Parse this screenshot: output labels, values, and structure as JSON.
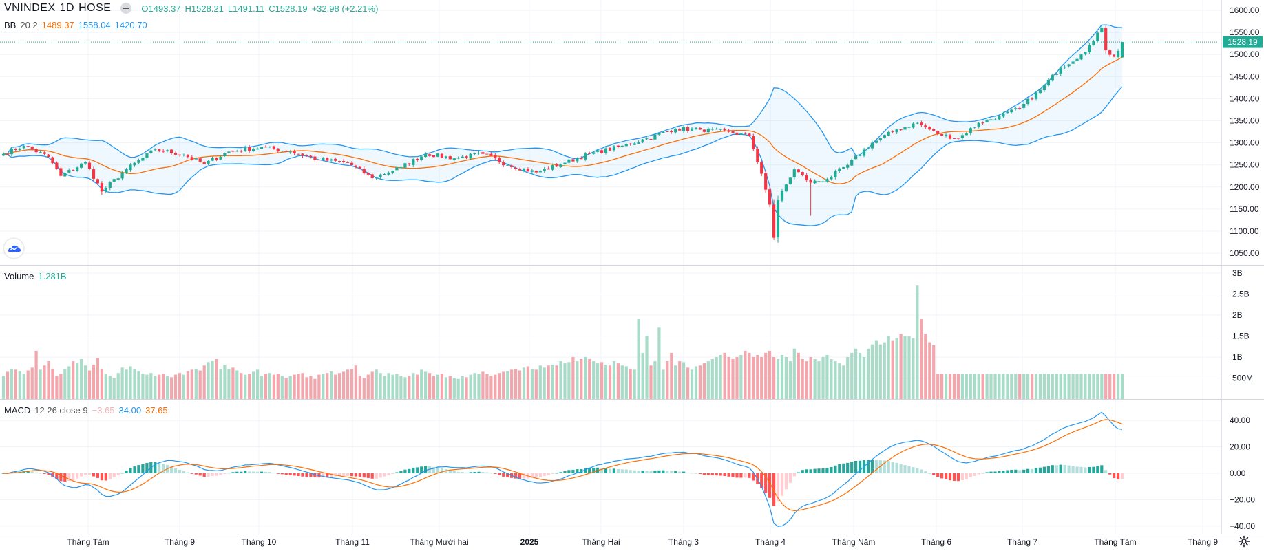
{
  "header": {
    "symbol": "VNINDEX",
    "interval": "1D",
    "exchange": "HOSE",
    "open": "O1493.37",
    "high": "H1528.21",
    "low": "L1491.11",
    "close": "C1528.19",
    "change": "+32.98 (+2.21%)"
  },
  "indicators": {
    "bb": {
      "label": "BB",
      "params": "20 2",
      "middle": "1489.37",
      "upper": "1558.04",
      "lower": "1420.70"
    },
    "volume": {
      "label": "Volume",
      "value": "1.281B"
    },
    "macd": {
      "label": "MACD",
      "params": "12 26 close 9",
      "hist": "−3.65",
      "macd": "34.00",
      "signal": "37.65"
    }
  },
  "last_price_tag": "1528.19",
  "colors": {
    "up": "#22ab94",
    "down": "#f23645",
    "vol_up": "#a8dcc8",
    "vol_down": "#f4a6ad",
    "bb_band": "#2196f3",
    "bb_basis": "#ff6d00",
    "macd_line": "#2196f3",
    "signal_line": "#ff6d00"
  },
  "icons": {
    "logo": "tradingview-cloud-logo-icon",
    "settings": "gear-icon"
  },
  "chart_data": {
    "type": "candlestick",
    "price_axis_labels": [
      "1600.00",
      "1550.00",
      "1500.00",
      "1450.00",
      "1400.00",
      "1350.00",
      "1300.00",
      "1250.00",
      "1200.00",
      "1150.00",
      "1100.00",
      "1050.00"
    ],
    "volume_axis_labels": [
      "3B",
      "2.5B",
      "2B",
      "1.5B",
      "1B",
      "500M"
    ],
    "macd_axis_labels": [
      "40.00",
      "20.00",
      "0.00",
      "−20.00",
      "−40.00"
    ],
    "x_labels": [
      "Tháng Tám",
      "Tháng 9",
      "Tháng 10",
      "Tháng 11",
      "Tháng Mười hai",
      "2025",
      "Tháng Hai",
      "Tháng 3",
      "Tháng 4",
      "Tháng Năm",
      "Tháng 6",
      "Tháng 7",
      "Tháng Tám",
      "Tháng 9"
    ],
    "price_keyframes": [
      {
        "i": 0,
        "c": 1275
      },
      {
        "i": 5,
        "c": 1293
      },
      {
        "i": 11,
        "c": 1268
      },
      {
        "i": 14,
        "c": 1225
      },
      {
        "i": 20,
        "c": 1256
      },
      {
        "i": 24,
        "c": 1190
      },
      {
        "i": 30,
        "c": 1240
      },
      {
        "i": 37,
        "c": 1285
      },
      {
        "i": 44,
        "c": 1273
      },
      {
        "i": 49,
        "c": 1252
      },
      {
        "i": 55,
        "c": 1280
      },
      {
        "i": 63,
        "c": 1290
      },
      {
        "i": 70,
        "c": 1280
      },
      {
        "i": 77,
        "c": 1262
      },
      {
        "i": 84,
        "c": 1255
      },
      {
        "i": 90,
        "c": 1220
      },
      {
        "i": 97,
        "c": 1245
      },
      {
        "i": 103,
        "c": 1275
      },
      {
        "i": 110,
        "c": 1265
      },
      {
        "i": 117,
        "c": 1275
      },
      {
        "i": 123,
        "c": 1250
      },
      {
        "i": 130,
        "c": 1233
      },
      {
        "i": 137,
        "c": 1255
      },
      {
        "i": 143,
        "c": 1275
      },
      {
        "i": 150,
        "c": 1290
      },
      {
        "i": 157,
        "c": 1310
      },
      {
        "i": 164,
        "c": 1332
      },
      {
        "i": 170,
        "c": 1330
      },
      {
        "i": 177,
        "c": 1325
      },
      {
        "i": 182,
        "c": 1315
      },
      {
        "i": 185,
        "c": 1230
      },
      {
        "i": 187,
        "c": 1160
      },
      {
        "i": 188,
        "c": 1085
      },
      {
        "i": 189,
        "c": 1170
      },
      {
        "i": 193,
        "c": 1240
      },
      {
        "i": 197,
        "c": 1210
      },
      {
        "i": 201,
        "c": 1218
      },
      {
        "i": 206,
        "c": 1250
      },
      {
        "i": 212,
        "c": 1300
      },
      {
        "i": 218,
        "c": 1330
      },
      {
        "i": 223,
        "c": 1345
      },
      {
        "i": 228,
        "c": 1320
      },
      {
        "i": 233,
        "c": 1310
      },
      {
        "i": 238,
        "c": 1345
      },
      {
        "i": 243,
        "c": 1360
      },
      {
        "i": 248,
        "c": 1378
      },
      {
        "i": 253,
        "c": 1420
      },
      {
        "i": 258,
        "c": 1470
      },
      {
        "i": 263,
        "c": 1500
      },
      {
        "i": 266,
        "c": 1530
      },
      {
        "i": 268,
        "c": 1560
      },
      {
        "i": 269,
        "c": 1510
      },
      {
        "i": 271,
        "c": 1495
      },
      {
        "i": 273,
        "c": 1528.19
      }
    ],
    "volume_series_billions": [
      0.55,
      0.65,
      0.72,
      0.7,
      0.66,
      0.6,
      0.68,
      0.75,
      1.15,
      0.7,
      0.8,
      0.9,
      0.72,
      0.55,
      0.6,
      0.72,
      0.78,
      0.9,
      0.85,
      0.95,
      0.8,
      0.68,
      0.82,
      0.98,
      0.72,
      0.6,
      0.55,
      0.5,
      0.62,
      0.75,
      0.7,
      0.78,
      0.72,
      0.66,
      0.6,
      0.58,
      0.62,
      0.55,
      0.58,
      0.6,
      0.55,
      0.52,
      0.58,
      0.62,
      0.58,
      0.66,
      0.7,
      0.72,
      0.68,
      0.8,
      0.88,
      0.9,
      0.95,
      0.72,
      0.82,
      0.72,
      0.75,
      0.68,
      0.62,
      0.58,
      0.6,
      0.65,
      0.7,
      0.55,
      0.6,
      0.62,
      0.58,
      0.6,
      0.55,
      0.5,
      0.55,
      0.58,
      0.6,
      0.62,
      0.52,
      0.55,
      0.48,
      0.58,
      0.6,
      0.62,
      0.66,
      0.58,
      0.62,
      0.65,
      0.7,
      0.72,
      0.8,
      0.55,
      0.5,
      0.58,
      0.65,
      0.7,
      0.62,
      0.55,
      0.62,
      0.58,
      0.6,
      0.55,
      0.52,
      0.55,
      0.62,
      0.58,
      0.7,
      0.65,
      0.62,
      0.55,
      0.58,
      0.6,
      0.52,
      0.55,
      0.5,
      0.48,
      0.55,
      0.52,
      0.58,
      0.62,
      0.6,
      0.65,
      0.6,
      0.55,
      0.58,
      0.62,
      0.65,
      0.66,
      0.7,
      0.72,
      0.68,
      0.75,
      0.78,
      0.72,
      0.7,
      0.8,
      0.75,
      0.8,
      0.82,
      0.8,
      0.9,
      0.85,
      0.88,
      1.0,
      0.9,
      0.95,
      1.0,
      0.95,
      0.9,
      0.85,
      0.88,
      0.82,
      0.8,
      0.9,
      0.85,
      0.8,
      0.78,
      0.72,
      0.7,
      1.9,
      1.1,
      1.5,
      0.8,
      0.9,
      1.7,
      0.7,
      0.9,
      1.1,
      0.8,
      0.9,
      0.88,
      0.75,
      0.7,
      0.78,
      0.8,
      0.85,
      0.9,
      0.95,
      1.0,
      1.05,
      1.1,
      1.0,
      0.95,
      1.0,
      1.05,
      1.15,
      1.1,
      1.0,
      1.05,
      1.0,
      1.1,
      1.15,
      1.0,
      0.95,
      1.05,
      1.0,
      0.9,
      1.2,
      1.1,
      0.95,
      0.9,
      1.0,
      0.95,
      0.9,
      1.0,
      1.05,
      0.95,
      0.9,
      0.85,
      0.8,
      1.0,
      1.1,
      1.2,
      1.1,
      1.0,
      1.2,
      1.3,
      1.4,
      1.3,
      1.35,
      1.5,
      1.4,
      1.45,
      1.55,
      1.5,
      1.5,
      1.45,
      2.7,
      1.9,
      1.55,
      1.35,
      1.281
    ]
  }
}
